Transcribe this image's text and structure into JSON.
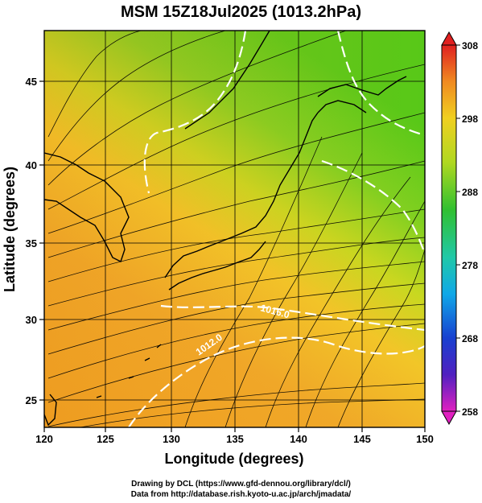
{
  "title": "MSM 15Z18Jul2025 (1013.2hPa)",
  "xaxis": {
    "label": "Longitude (degrees)",
    "ticks": [
      "120",
      "125",
      "130",
      "135",
      "140",
      "145",
      "150"
    ],
    "range": [
      120,
      150
    ]
  },
  "yaxis": {
    "label": "Latitude  (degrees)",
    "ticks": [
      "25",
      "30",
      "35",
      "40",
      "45"
    ],
    "range": [
      22.5,
      47.5
    ]
  },
  "colorbar": {
    "ticks": [
      "258",
      "268",
      "278",
      "288",
      "298",
      "308"
    ],
    "range": [
      258,
      308
    ],
    "colors": [
      "#e020c0",
      "#2030c0",
      "#1860e0",
      "#10b0e0",
      "#20c8a0",
      "#30c030",
      "#90d820",
      "#e8e020",
      "#f0a020",
      "#e85020",
      "#e02020"
    ]
  },
  "contours": [
    {
      "label": "1012.0"
    },
    {
      "label": "1016.0"
    }
  ],
  "credits": [
    "Drawing by DCL (https://www.gfd-dennou.org/library/dcl/)",
    "Data from http://database.rish.kyoto-u.ac.jp/arch/jmadata/"
  ],
  "colors": {
    "land_line": "#000000",
    "contour": "#ffffff",
    "warm": "#f09a20",
    "cool": "#8ad020"
  }
}
